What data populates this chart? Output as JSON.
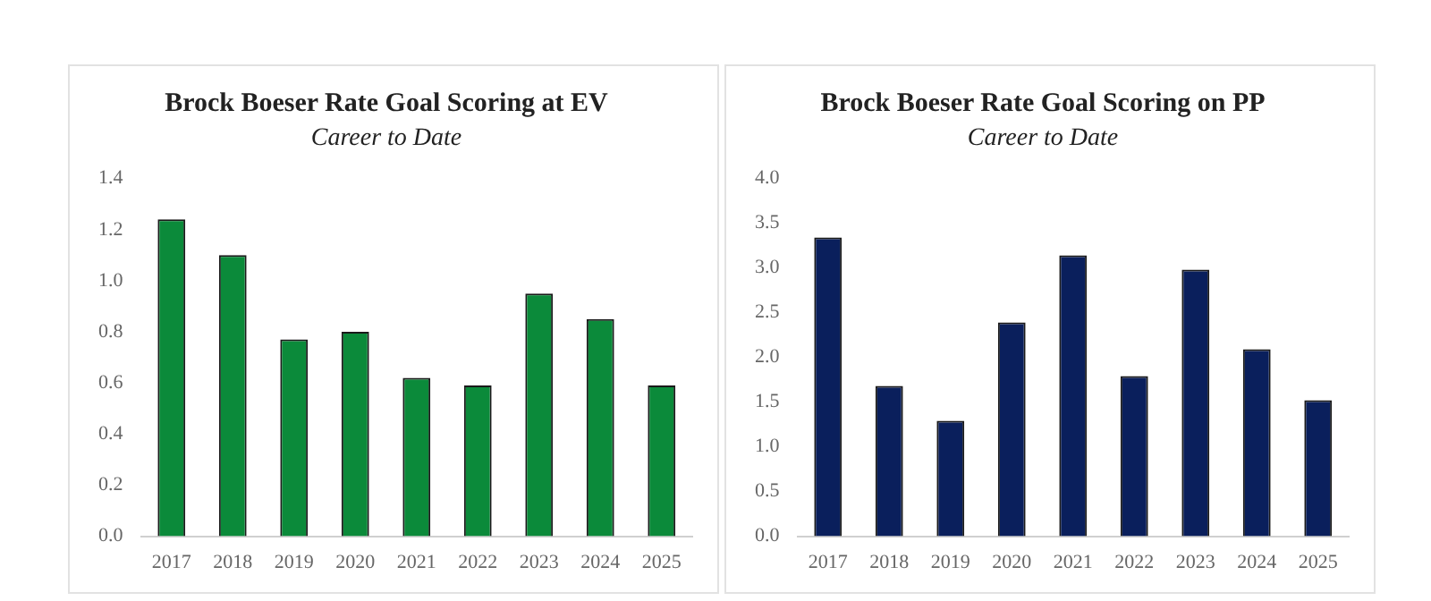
{
  "chart_data": [
    {
      "type": "bar",
      "title": "Brock Boeser Rate Goal Scoring at EV",
      "subtitle": "Career to Date",
      "categories": [
        "2017",
        "2018",
        "2019",
        "2020",
        "2021",
        "2022",
        "2023",
        "2024",
        "2025"
      ],
      "values": [
        1.24,
        1.1,
        0.77,
        0.8,
        0.62,
        0.59,
        0.95,
        0.85,
        0.59
      ],
      "color": "#0b8a3a",
      "ylim": [
        0,
        1.4
      ],
      "yticks": [
        {
          "value": 0,
          "label": "0.0"
        },
        {
          "value": 0.2,
          "label": "0.2"
        },
        {
          "value": 0.4,
          "label": "0.4"
        },
        {
          "value": 0.6,
          "label": "0.6"
        },
        {
          "value": 0.8,
          "label": "0.8"
        },
        {
          "value": 1,
          "label": "1.0"
        },
        {
          "value": 1.2,
          "label": "1.2"
        },
        {
          "value": 1.4,
          "label": "1.4"
        }
      ],
      "grid": false
    },
    {
      "type": "bar",
      "title": "Brock Boeser Rate Goal Scoring on PP",
      "subtitle": "Career to Date",
      "categories": [
        "2017",
        "2018",
        "2019",
        "2020",
        "2021",
        "2022",
        "2023",
        "2024",
        "2025"
      ],
      "values": [
        3.34,
        1.68,
        1.29,
        2.39,
        3.14,
        1.79,
        2.98,
        2.09,
        1.52
      ],
      "color": "#0a1f5c",
      "ylim": [
        0,
        4
      ],
      "yticks": [
        {
          "value": 0,
          "label": "0.0"
        },
        {
          "value": 0.5,
          "label": "0.5"
        },
        {
          "value": 1,
          "label": "1.0"
        },
        {
          "value": 1.5,
          "label": "1.5"
        },
        {
          "value": 2,
          "label": "2.0"
        },
        {
          "value": 2.5,
          "label": "2.5"
        },
        {
          "value": 3,
          "label": "3.0"
        },
        {
          "value": 3.5,
          "label": "3.5"
        },
        {
          "value": 4,
          "label": "4.0"
        }
      ],
      "grid": false
    }
  ]
}
